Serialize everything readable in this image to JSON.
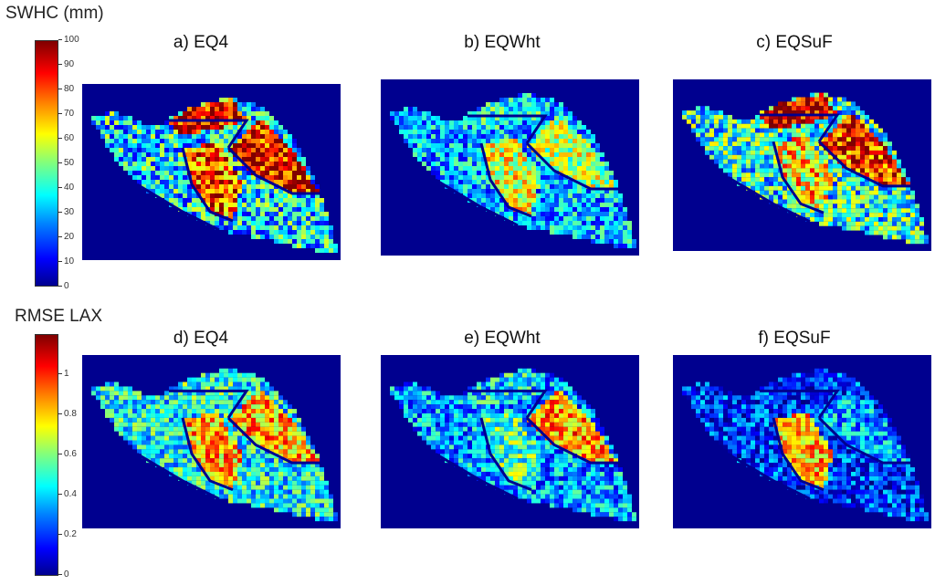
{
  "colorbars": {
    "swhc": {
      "title": "SWHC (mm)",
      "ticks": [
        "100",
        "90",
        "80",
        "70",
        "60",
        "50",
        "40",
        "30",
        "20",
        "10",
        "0"
      ]
    },
    "rmse": {
      "title": "RMSE LAX",
      "ticks": [
        "1",
        "0.8",
        "0.6",
        "0.4",
        "0.2",
        "0"
      ]
    }
  },
  "panels": [
    {
      "id": "a",
      "title": "a) EQ4"
    },
    {
      "id": "b",
      "title": "b) EQWht"
    },
    {
      "id": "c",
      "title": "c) EQSuF"
    },
    {
      "id": "d",
      "title": "d) EQ4"
    },
    {
      "id": "e",
      "title": "e) EQWht"
    },
    {
      "id": "f",
      "title": "f) EQSuF"
    }
  ],
  "colors": {
    "background": "#00008f",
    "jet_low": "#0000ff",
    "jet_mid": "#00ffff",
    "jet_high": "#ff0000"
  }
}
